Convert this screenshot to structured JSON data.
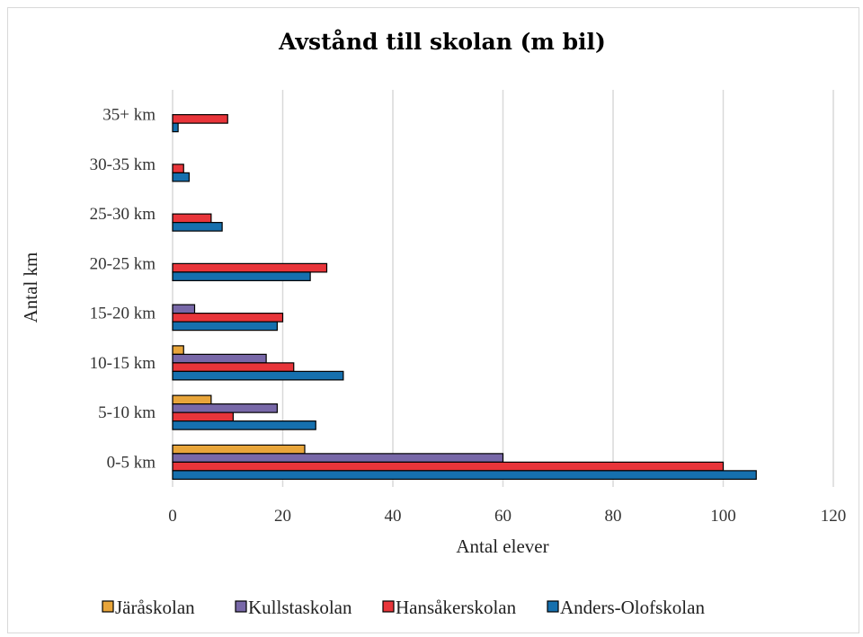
{
  "chart_data": {
    "type": "bar",
    "orientation": "horizontal",
    "title": "Avstånd till skolan (m bil)",
    "xlabel": "Antal elever",
    "ylabel": "Antal km",
    "xlim": [
      0,
      120
    ],
    "x_ticks": [
      "0",
      "20",
      "40",
      "60",
      "80",
      "100",
      "120"
    ],
    "grid": true,
    "legend_position": "bottom",
    "categories": [
      "0-5 km",
      "5-10 km",
      "10-15 km",
      "15-20 km",
      "20-25 km",
      "25-30 km",
      "30-35 km",
      "35+ km"
    ],
    "series": [
      {
        "name": "Järåskolan",
        "color": "#e8a53a",
        "values": [
          24,
          7,
          2,
          0,
          0,
          0,
          0,
          0
        ]
      },
      {
        "name": "Kullstaskolan",
        "color": "#7868a8",
        "values": [
          60,
          19,
          17,
          4,
          0,
          0,
          0,
          0
        ]
      },
      {
        "name": "Hansåkerskolan",
        "color": "#e8353a",
        "values": [
          100,
          11,
          22,
          20,
          28,
          7,
          2,
          10
        ]
      },
      {
        "name": "Anders-Olofskolan",
        "color": "#1670ae",
        "values": [
          106,
          26,
          31,
          19,
          25,
          9,
          3,
          1
        ]
      }
    ]
  }
}
